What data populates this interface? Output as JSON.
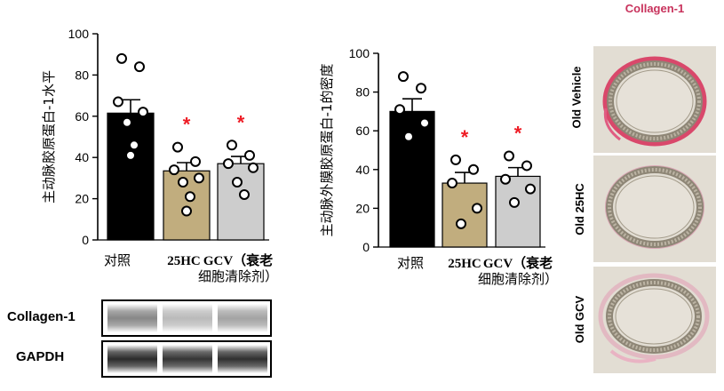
{
  "chart_data": [
    {
      "type": "bar",
      "title": "",
      "ylabel": "主动脉胶原蛋白-1水平",
      "xlabel": "",
      "ylim": [
        0,
        100
      ],
      "yticks": [
        "0",
        "20",
        "40",
        "60",
        "80",
        "100"
      ],
      "categories": [
        "对照",
        "25HC",
        "GCV（衰老细胞清除剂）"
      ],
      "category_labels": [
        [
          "对照"
        ],
        [
          "25HC"
        ],
        [
          "GCV（衰老",
          "细胞清除剂）"
        ]
      ],
      "values": [
        61.5,
        33.5,
        37
      ],
      "errors": [
        6.5,
        4,
        3.5
      ],
      "points": [
        [
          88,
          84,
          67,
          62,
          57,
          46,
          41
        ],
        [
          45,
          38,
          34,
          30,
          28,
          21,
          14
        ],
        [
          46,
          41,
          37,
          35,
          28,
          22
        ]
      ],
      "significance": [
        "",
        "*",
        "*"
      ],
      "bar_colors": [
        "#000000",
        "#c1ad7e",
        "#cdcdcd"
      ]
    },
    {
      "type": "bar",
      "title": "",
      "ylabel": "主动脉外膜胶原蛋白-1的密度",
      "xlabel": "",
      "ylim": [
        0,
        100
      ],
      "yticks": [
        "0",
        "20",
        "40",
        "60",
        "80",
        "100"
      ],
      "categories": [
        "对照",
        "25HC",
        "GCV（衰老细胞清除剂）"
      ],
      "category_labels": [
        [
          "对照"
        ],
        [
          "25HC"
        ],
        [
          "GCV（衰老",
          "细胞清除剂）"
        ]
      ],
      "values": [
        70,
        33,
        36.5
      ],
      "errors": [
        6.5,
        5.5,
        4.5
      ],
      "points": [
        [
          88,
          82,
          71,
          64,
          57
        ],
        [
          45,
          40,
          33,
          20,
          12
        ],
        [
          47,
          42,
          35,
          30,
          23
        ]
      ],
      "significance": [
        "",
        "*",
        "*"
      ],
      "bar_colors": [
        "#000000",
        "#c1ad7e",
        "#cdcdcd"
      ]
    }
  ],
  "western_blot": {
    "rows": [
      {
        "label": "Collagen-1",
        "intensities": [
          0.52,
          0.3,
          0.4
        ]
      },
      {
        "label": "GAPDH",
        "intensities": [
          0.92,
          0.88,
          0.9
        ]
      }
    ]
  },
  "histology": {
    "title": "Collagen-1",
    "title_color": "#c8325c",
    "panels": [
      {
        "label": "Old Vehicle",
        "staining": "strong"
      },
      {
        "label": "Old 25HC",
        "staining": "weak"
      },
      {
        "label": "Old GCV",
        "staining": "weak"
      }
    ]
  },
  "significance_color": "#ee1c25"
}
